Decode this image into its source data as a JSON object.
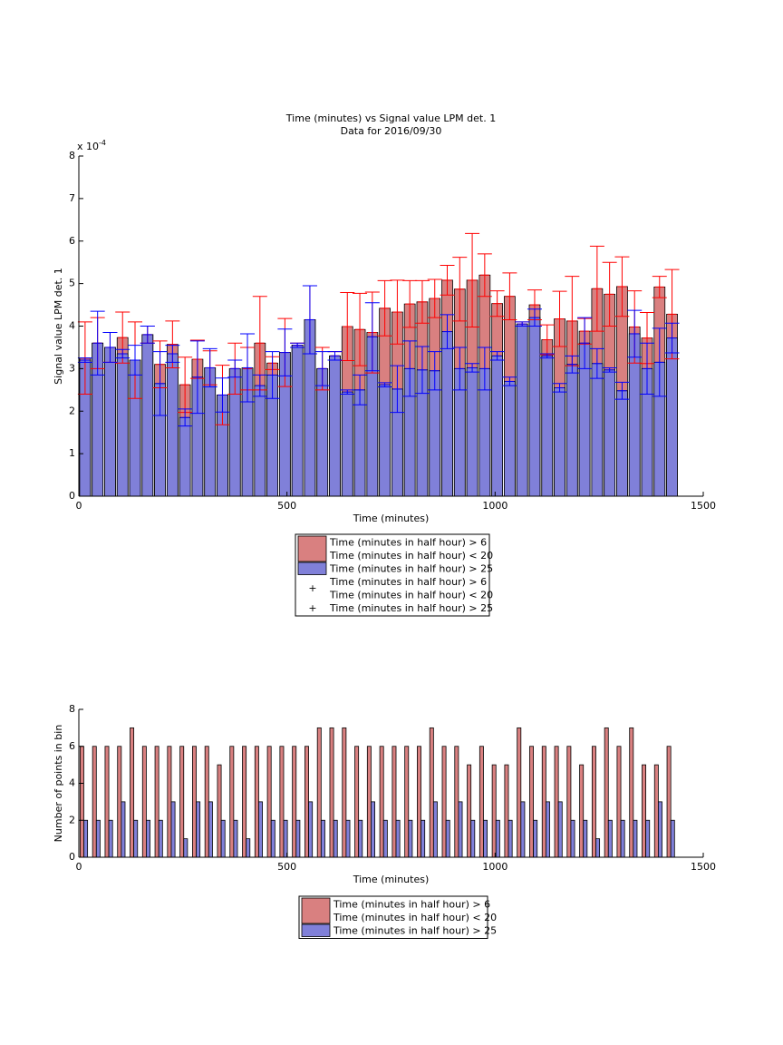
{
  "chart_data": [
    {
      "type": "bar",
      "barmode": "overlay",
      "title": "Time (minutes) vs Signal value LPM det. 1",
      "subtitle": "Data for 2016/09/30",
      "xlabel": "Time (minutes)",
      "ylabel": "Signal value LPM det. 1",
      "y_multiplier": "x 10",
      "y_exponent": "-4",
      "x": [
        15,
        45,
        75,
        105,
        135,
        165,
        195,
        225,
        255,
        285,
        315,
        345,
        375,
        405,
        435,
        465,
        495,
        525,
        555,
        585,
        615,
        645,
        675,
        705,
        735,
        765,
        795,
        825,
        855,
        885,
        915,
        945,
        975,
        1005,
        1035,
        1065,
        1095,
        1125,
        1155,
        1185,
        1215,
        1245,
        1275,
        1305,
        1335,
        1365,
        1395,
        1425
      ],
      "xlim": [
        0,
        1500
      ],
      "xticks": [
        0,
        500,
        1000,
        1500
      ],
      "ylim": [
        0,
        8
      ],
      "yticks": [
        0,
        1,
        2,
        3,
        4,
        5,
        6,
        7,
        8
      ],
      "series": [
        {
          "name": [
            "Time (minutes in half hour) > 6",
            "Time (minutes in half hour) < 20"
          ],
          "color": "#d98080",
          "error_color": "#ff0000",
          "values": [
            3.25,
            3.6,
            3.5,
            3.73,
            3.2,
            3.8,
            3.1,
            3.57,
            2.62,
            3.22,
            3.02,
            2.38,
            3.0,
            3.0,
            3.6,
            3.13,
            3.38,
            3.55,
            4.15,
            3.0,
            3.3,
            3.99,
            3.92,
            3.85,
            4.42,
            4.33,
            4.52,
            4.57,
            4.65,
            5.08,
            4.87,
            5.08,
            5.2,
            4.53,
            4.7,
            4.05,
            4.5,
            3.68,
            4.17,
            4.12,
            3.88,
            4.88,
            4.75,
            4.93,
            3.98,
            3.72,
            4.92,
            4.28
          ],
          "errors": [
            0.85,
            0.6,
            0.35,
            0.6,
            0.9,
            0.2,
            0.55,
            0.55,
            0.65,
            0.45,
            0.4,
            0.7,
            0.6,
            0.5,
            1.1,
            0.15,
            0.8,
            0.05,
            0.8,
            0.5,
            0.1,
            0.8,
            0.85,
            0.95,
            0.65,
            0.75,
            0.55,
            0.5,
            0.45,
            0.35,
            0.75,
            1.1,
            0.5,
            0.3,
            0.55,
            0.05,
            0.35,
            0.35,
            0.65,
            1.05,
            0.3,
            1.0,
            0.75,
            0.7,
            0.85,
            0.6,
            0.25,
            1.05
          ]
        },
        {
          "name": [
            "Time (minutes in half hour) > 25"
          ],
          "color": "#8080d9",
          "error_color": "#0000ff",
          "values": [
            3.2,
            3.6,
            3.5,
            3.35,
            3.2,
            3.8,
            2.65,
            3.35,
            1.85,
            2.8,
            3.02,
            2.38,
            3.0,
            3.02,
            2.6,
            2.85,
            3.38,
            3.55,
            4.15,
            3.0,
            3.3,
            2.45,
            2.5,
            3.75,
            2.62,
            2.52,
            3.0,
            2.97,
            2.95,
            3.87,
            3.0,
            3.02,
            3.0,
            3.3,
            2.7,
            4.05,
            4.2,
            3.3,
            2.55,
            3.1,
            3.6,
            3.12,
            2.97,
            2.48,
            3.82,
            3.0,
            3.15,
            3.72
          ],
          "errors": [
            0.05,
            0.75,
            0.35,
            0.1,
            0.35,
            0.2,
            0.75,
            0.2,
            0.2,
            0.85,
            0.45,
            0.4,
            0.2,
            0.8,
            0.25,
            0.55,
            0.55,
            0.05,
            0.8,
            0.4,
            0.1,
            0.05,
            0.35,
            0.8,
            0.05,
            0.55,
            0.65,
            0.55,
            0.45,
            0.4,
            0.5,
            0.1,
            0.5,
            0.1,
            0.1,
            0.05,
            0.2,
            0.05,
            0.1,
            0.2,
            0.6,
            0.35,
            0.05,
            0.2,
            0.55,
            0.6,
            0.8,
            0.35
          ]
        }
      ]
    },
    {
      "type": "bar",
      "barmode": "grouped",
      "xlabel": "Time (minutes)",
      "ylabel": "Number of points in bin",
      "x": [
        15,
        45,
        75,
        105,
        135,
        165,
        195,
        225,
        255,
        285,
        315,
        345,
        375,
        405,
        435,
        465,
        495,
        525,
        555,
        585,
        615,
        645,
        675,
        705,
        735,
        765,
        795,
        825,
        855,
        885,
        915,
        945,
        975,
        1005,
        1035,
        1065,
        1095,
        1125,
        1155,
        1185,
        1215,
        1245,
        1275,
        1305,
        1335,
        1365,
        1395,
        1425
      ],
      "xlim": [
        0,
        1500
      ],
      "xticks": [
        0,
        500,
        1000,
        1500
      ],
      "ylim": [
        0,
        8
      ],
      "yticks": [
        0,
        2,
        4,
        6,
        8
      ],
      "series": [
        {
          "name": [
            "Time (minutes in half hour) > 6",
            "Time (minutes in half hour) < 20"
          ],
          "color": "#d98080",
          "values": [
            6,
            6,
            6,
            6,
            7,
            6,
            6,
            6,
            6,
            6,
            6,
            5,
            6,
            6,
            6,
            6,
            6,
            6,
            6,
            7,
            7,
            7,
            6,
            6,
            6,
            6,
            6,
            6,
            7,
            6,
            6,
            5,
            6,
            5,
            5,
            7,
            6,
            6,
            6,
            6,
            5,
            6,
            7,
            6,
            7,
            5,
            5,
            6
          ]
        },
        {
          "name": [
            "Time (minutes in half hour) > 25"
          ],
          "color": "#8080d9",
          "values": [
            2,
            2,
            2,
            3,
            2,
            2,
            2,
            3,
            1,
            3,
            3,
            2,
            2,
            1,
            3,
            2,
            2,
            2,
            3,
            2,
            2,
            2,
            2,
            3,
            2,
            2,
            2,
            2,
            3,
            2,
            3,
            2,
            2,
            2,
            2,
            3,
            2,
            3,
            3,
            2,
            2,
            1,
            2,
            2,
            2,
            2,
            3,
            2
          ]
        }
      ]
    }
  ]
}
